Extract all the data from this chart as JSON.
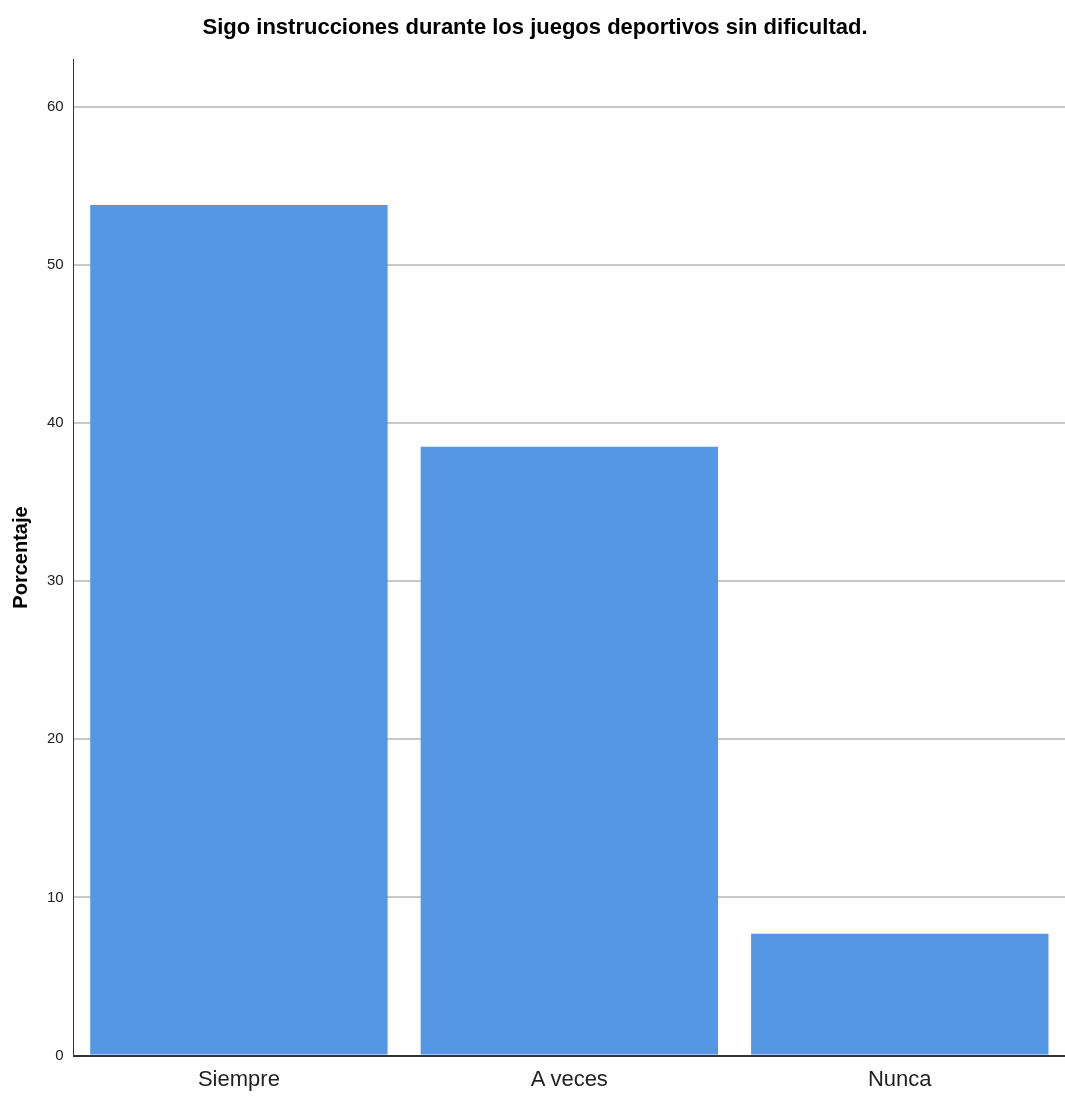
{
  "chart_data": {
    "type": "bar",
    "title": "Sigo instrucciones durante los juegos deportivos sin dificultad.",
    "ylabel": "Porcentaje",
    "categories": [
      "Siempre",
      "A veces",
      "Nunca"
    ],
    "values": [
      53.8,
      38.5,
      7.7
    ],
    "color": "#5597e4",
    "ylim": [
      0,
      63
    ],
    "yticks": [
      0,
      10,
      20,
      30,
      40,
      50,
      60
    ],
    "grid": "y",
    "legend": false
  }
}
